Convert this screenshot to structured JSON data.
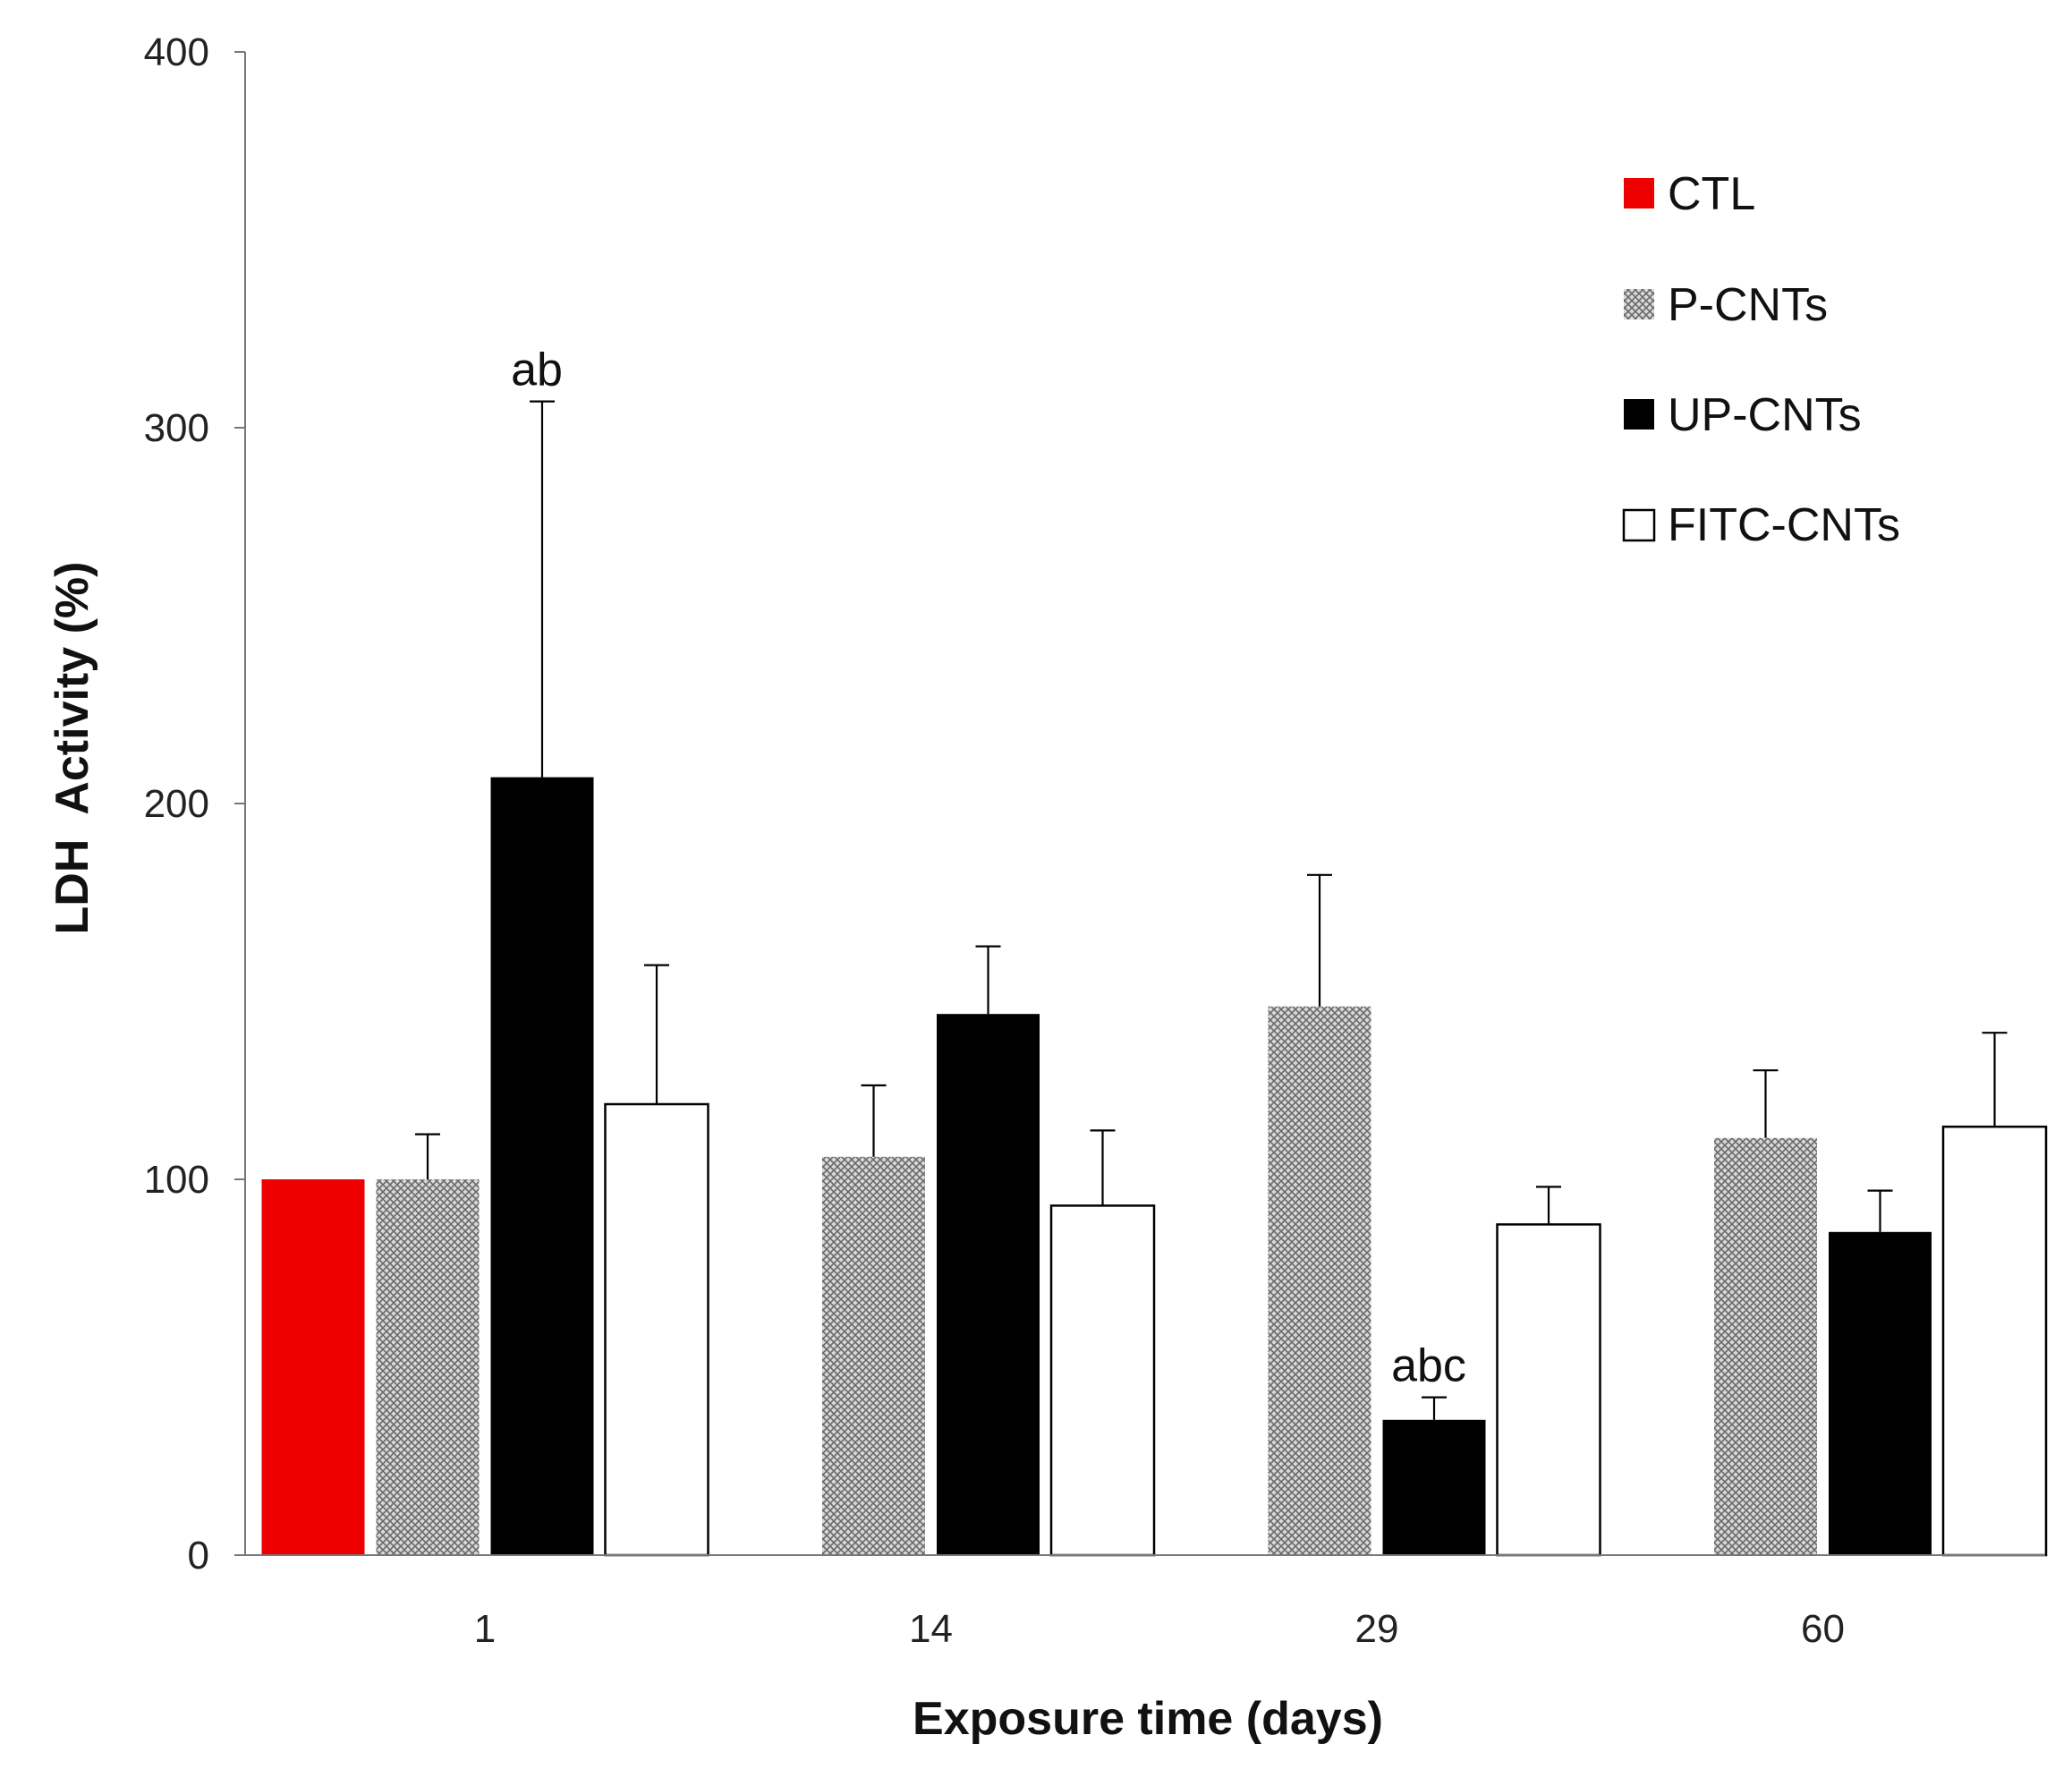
{
  "chart_data": {
    "type": "bar",
    "title": "",
    "xlabel": "Exposure time (days)",
    "ylabel": "LDH  Activity (%)",
    "ylim": [
      0,
      400
    ],
    "yticks": [
      0,
      100,
      200,
      300,
      400
    ],
    "grid": false,
    "legend_position": "top-right",
    "categories": [
      "1",
      "14",
      "29",
      "60"
    ],
    "series": [
      {
        "name": "CTL",
        "pattern": "solid-red",
        "color": "#ee0000",
        "values": [
          100,
          null,
          null,
          null
        ],
        "errors": [
          0,
          null,
          null,
          null
        ]
      },
      {
        "name": "P-CNTs",
        "pattern": "crosshatch",
        "color": "#888888",
        "values": [
          100,
          106,
          146,
          111
        ],
        "errors": [
          12,
          19,
          35,
          18
        ]
      },
      {
        "name": "UP-CNTs",
        "pattern": "solid-black",
        "color": "#000000",
        "values": [
          207,
          144,
          36,
          86
        ],
        "errors": [
          100,
          18,
          6,
          11
        ]
      },
      {
        "name": "FITC-CNTs",
        "pattern": "white",
        "color": "#ffffff",
        "values": [
          120,
          93,
          88,
          114
        ],
        "errors": [
          37,
          20,
          10,
          25
        ]
      }
    ],
    "annotations": [
      {
        "text": "ab",
        "category": "1",
        "series": "UP-CNTs"
      },
      {
        "text": "abc",
        "category": "29",
        "series": "UP-CNTs"
      }
    ]
  }
}
